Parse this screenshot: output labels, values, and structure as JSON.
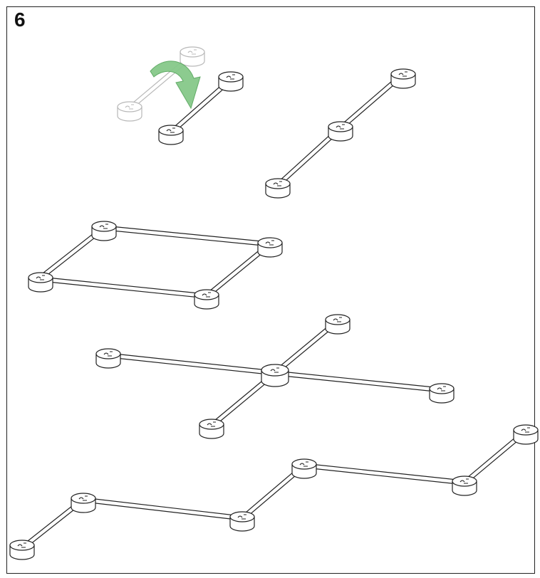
{
  "step": {
    "number": "6"
  },
  "colors": {
    "stroke": "#222222",
    "ghost": "#b8b8b8",
    "arrow": "#86c98a",
    "arrow_edge": "#5aa85f"
  },
  "icons": {
    "rotate": "curved-rotate-arrow-icon",
    "node": "connector-hub-icon"
  },
  "assemblies": [
    {
      "name": "rotated-pair",
      "nodes": [
        "ghost-1",
        "ghost-2",
        "pair-top",
        "pair-bottom"
      ]
    },
    {
      "name": "three-in-line",
      "nodes": [
        "top",
        "middle",
        "bottom"
      ]
    },
    {
      "name": "square",
      "nodes": [
        "top-left",
        "top-right",
        "bottom-left",
        "bottom-right"
      ]
    },
    {
      "name": "cross",
      "nodes": [
        "top",
        "left",
        "center",
        "right",
        "bottom"
      ]
    },
    {
      "name": "zigzag",
      "nodes": [
        "n1",
        "n2",
        "n3",
        "n4",
        "n5",
        "n6"
      ]
    }
  ]
}
